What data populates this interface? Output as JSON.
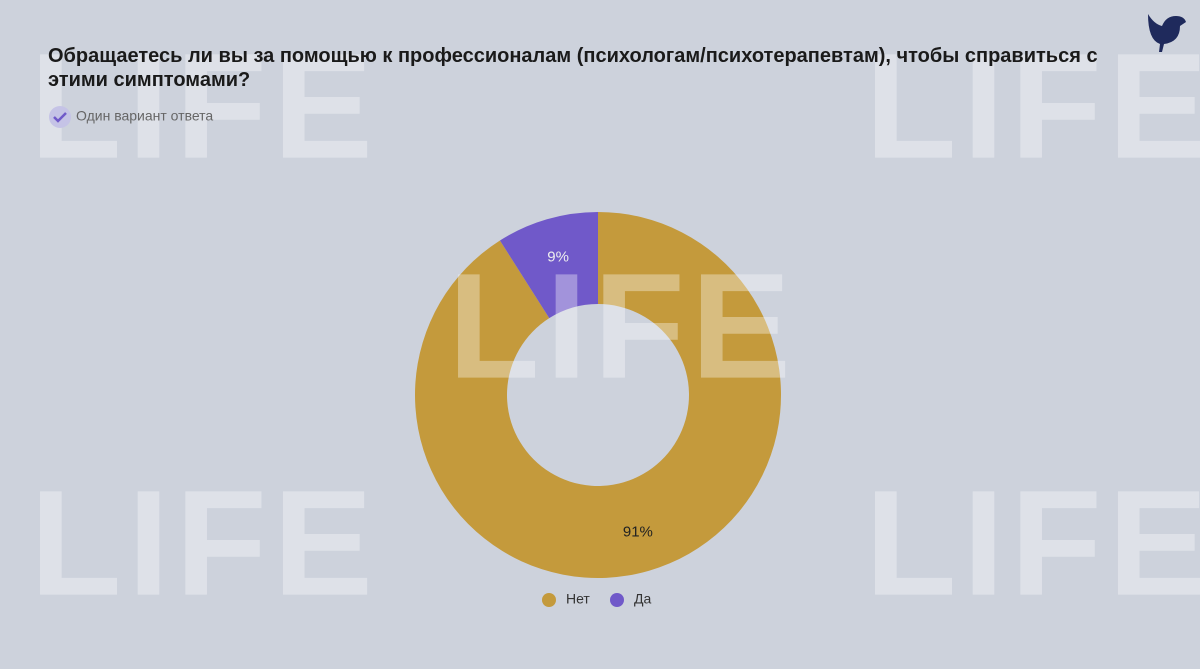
{
  "chart_data": {
    "type": "donut",
    "title": "Обращаетесь ли вы за помощью к профессионалам (психологам/психотерапевтам), чтобы справиться с этими симптомами?",
    "subtitle": "Один вариант ответа",
    "watermark": "LIFE",
    "categories": [
      "Нет",
      "Да"
    ],
    "values": [
      91,
      9
    ],
    "value_labels": [
      "91%",
      "9%"
    ],
    "colors": [
      "#c49a3c",
      "#7059c9"
    ],
    "legend": "bottom"
  }
}
